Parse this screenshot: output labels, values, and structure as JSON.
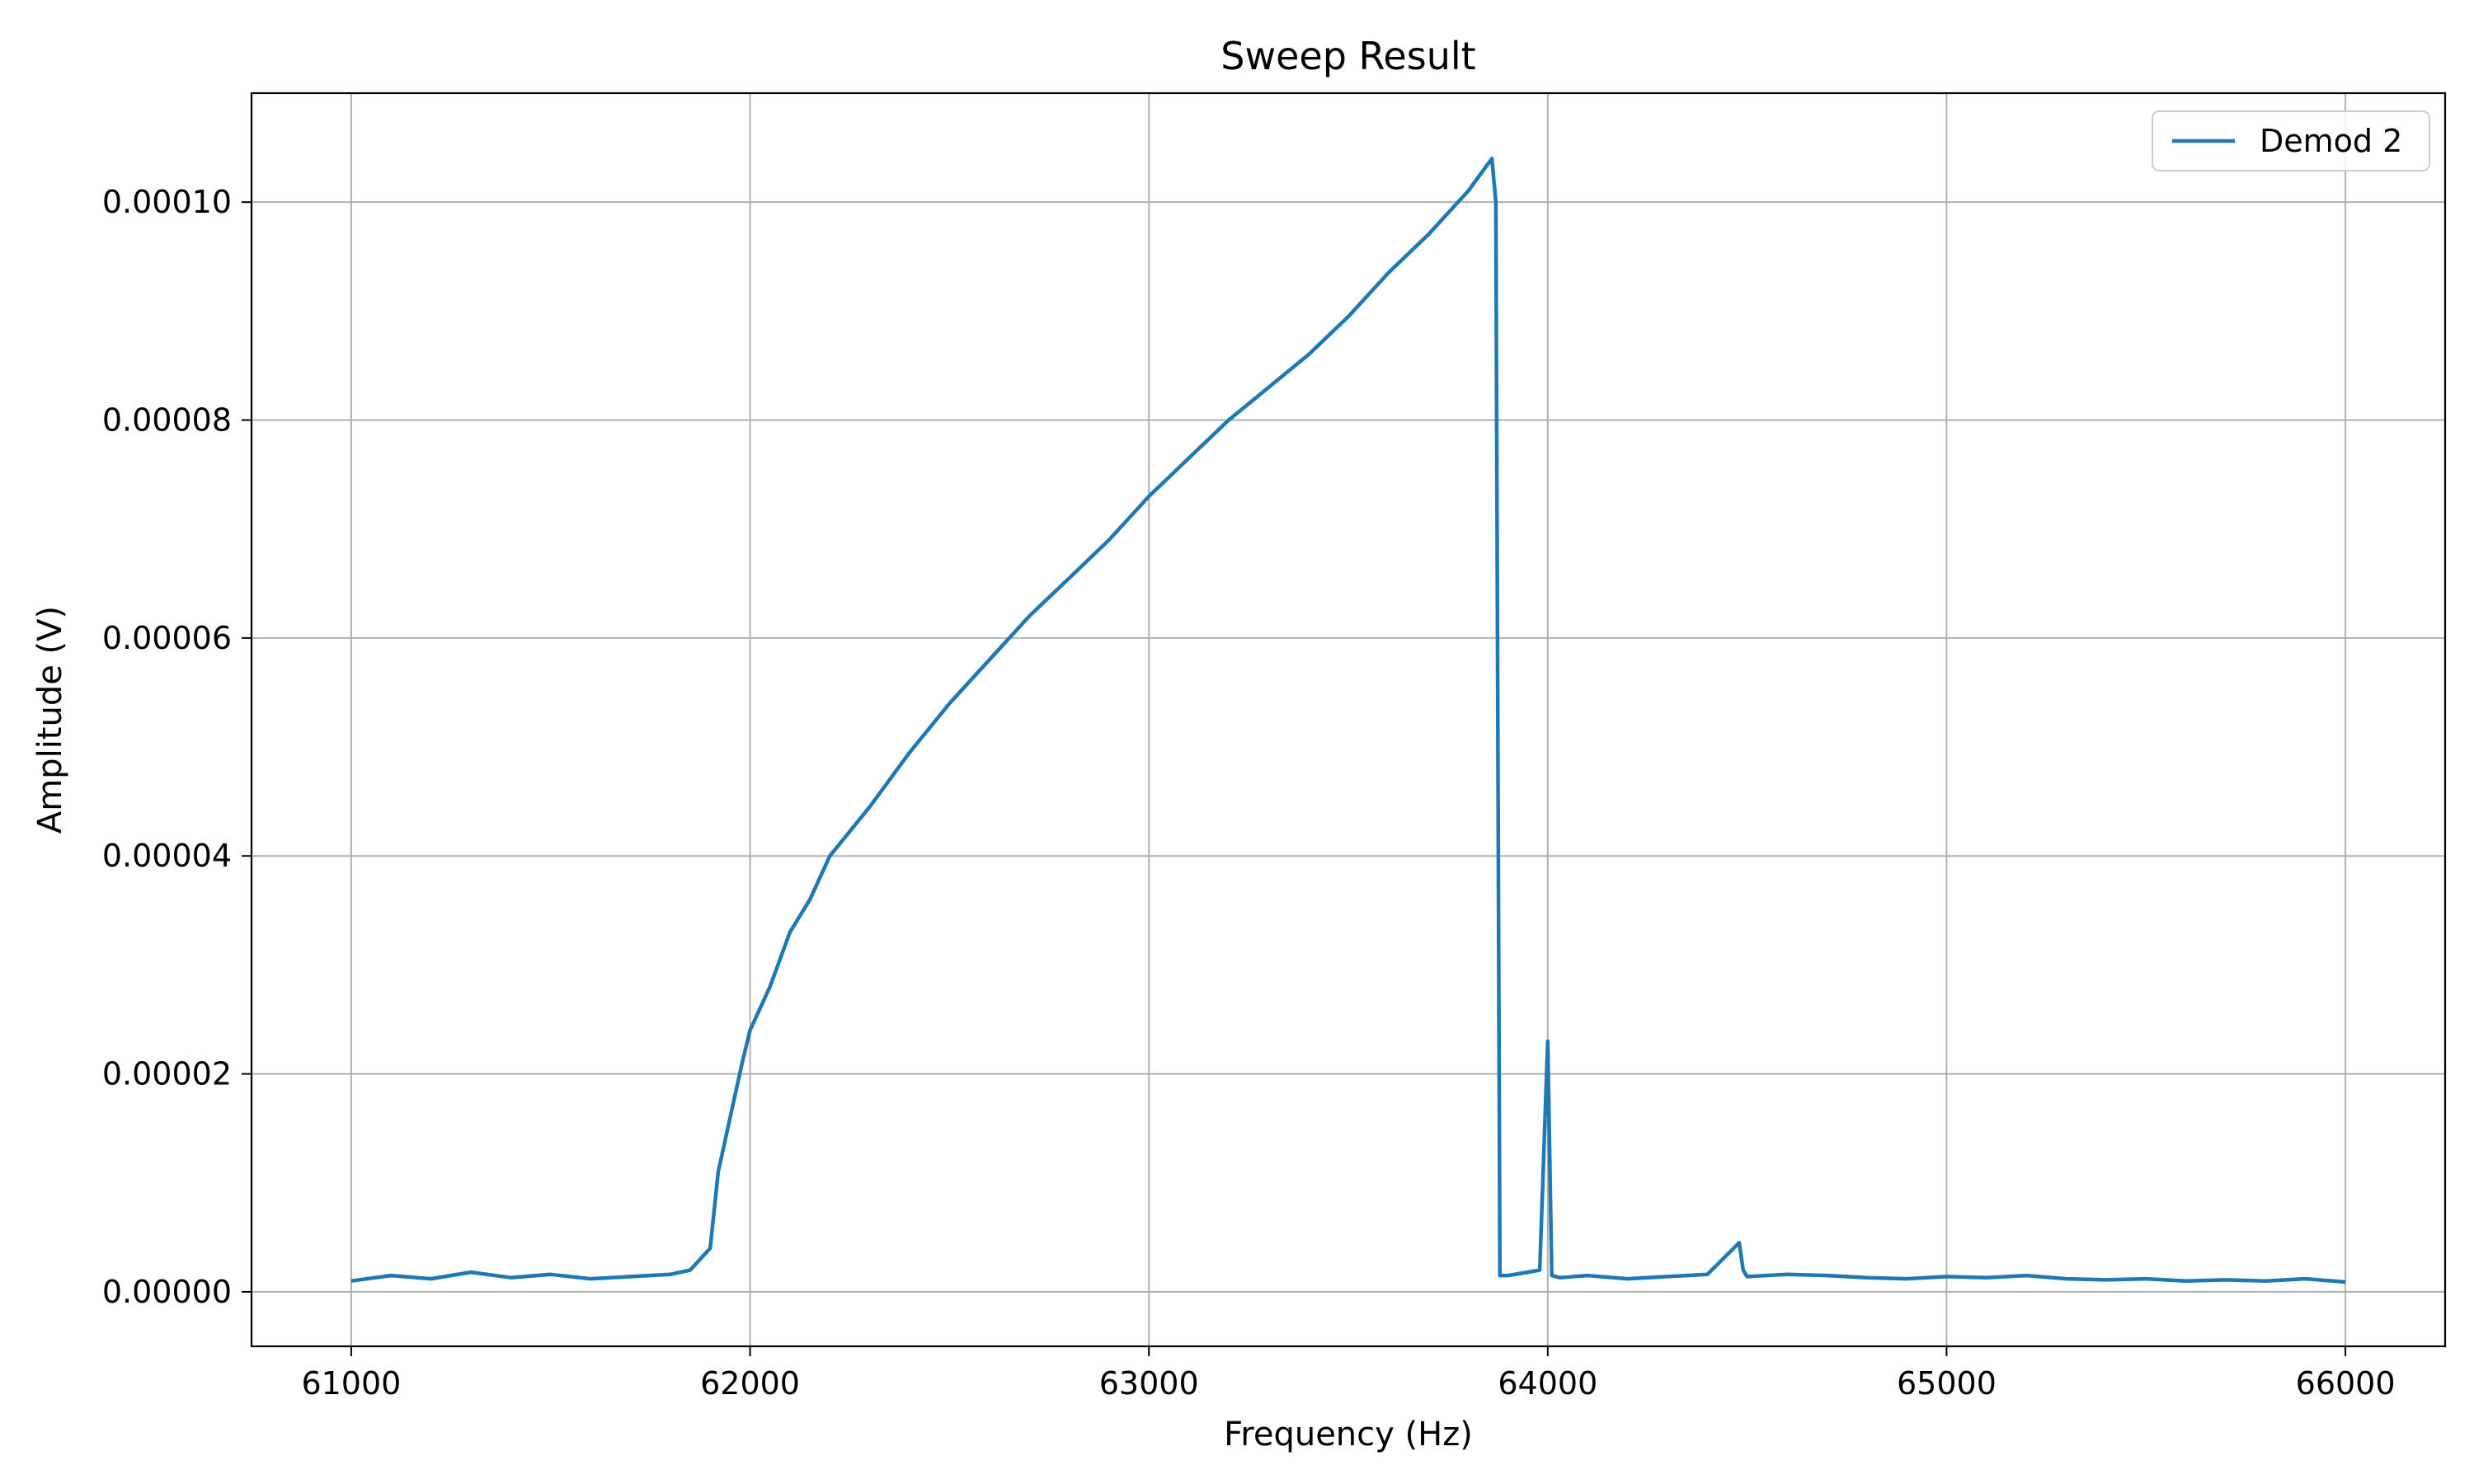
{
  "chart_data": {
    "type": "line",
    "title": "Sweep Result",
    "xlabel": "Frequency (Hz)",
    "ylabel": "Amplitude (V)",
    "xlim": [
      60750,
      66250
    ],
    "ylim": [
      -5e-06,
      0.00011
    ],
    "xticks": [
      61000,
      62000,
      63000,
      64000,
      65000,
      66000
    ],
    "xtick_labels": [
      "61000",
      "62000",
      "63000",
      "64000",
      "65000",
      "66000"
    ],
    "yticks": [
      0,
      2e-05,
      4e-05,
      6e-05,
      8e-05,
      0.0001
    ],
    "ytick_labels": [
      "0.00000",
      "0.00002",
      "0.00004",
      "0.00006",
      "0.00008",
      "0.00010"
    ],
    "grid": true,
    "legend": {
      "position": "top-right",
      "entries": [
        "Demod 2"
      ]
    },
    "series": [
      {
        "name": "Demod 2",
        "color": "#1f77b4",
        "x": [
          61000,
          61100,
          61200,
          61300,
          61400,
          61500,
          61600,
          61700,
          61800,
          61850,
          61900,
          61920,
          61950,
          61980,
          62000,
          62050,
          62100,
          62150,
          62200,
          62300,
          62400,
          62500,
          62600,
          62700,
          62800,
          62900,
          63000,
          63100,
          63200,
          63300,
          63400,
          63500,
          63600,
          63700,
          63800,
          63860,
          63870,
          63880,
          63900,
          63950,
          63980,
          64000,
          64010,
          64030,
          64100,
          64200,
          64300,
          64400,
          64480,
          64490,
          64500,
          64600,
          64700,
          64800,
          64900,
          65000,
          65100,
          65200,
          65300,
          65400,
          65500,
          65600,
          65700,
          65800,
          65900,
          66000
        ],
        "y": [
          1e-06,
          1.5e-06,
          1.2e-06,
          1.8e-06,
          1.3e-06,
          1.6e-06,
          1.2e-06,
          1.4e-06,
          1.6e-06,
          2e-06,
          4e-06,
          1.1e-05,
          1.6e-05,
          2.1e-05,
          2.4e-05,
          2.8e-05,
          3.3e-05,
          3.6e-05,
          4e-05,
          4.45e-05,
          4.95e-05,
          5.4e-05,
          5.8e-05,
          6.2e-05,
          6.55e-05,
          6.9e-05,
          7.3e-05,
          7.65e-05,
          8e-05,
          8.3e-05,
          8.6e-05,
          8.95e-05,
          9.35e-05,
          9.7e-05,
          0.000101,
          0.000104,
          0.0001,
          1.5e-06,
          1.5e-06,
          1.8e-06,
          2e-06,
          2.3e-05,
          1.5e-06,
          1.3e-06,
          1.5e-06,
          1.2e-06,
          1.4e-06,
          1.6e-06,
          4.5e-06,
          2e-06,
          1.4e-06,
          1.6e-06,
          1.5e-06,
          1.3e-06,
          1.2e-06,
          1.4e-06,
          1.3e-06,
          1.5e-06,
          1.2e-06,
          1.1e-06,
          1.2e-06,
          1e-06,
          1.1e-06,
          1e-06,
          1.2e-06,
          9e-07
        ]
      }
    ]
  }
}
